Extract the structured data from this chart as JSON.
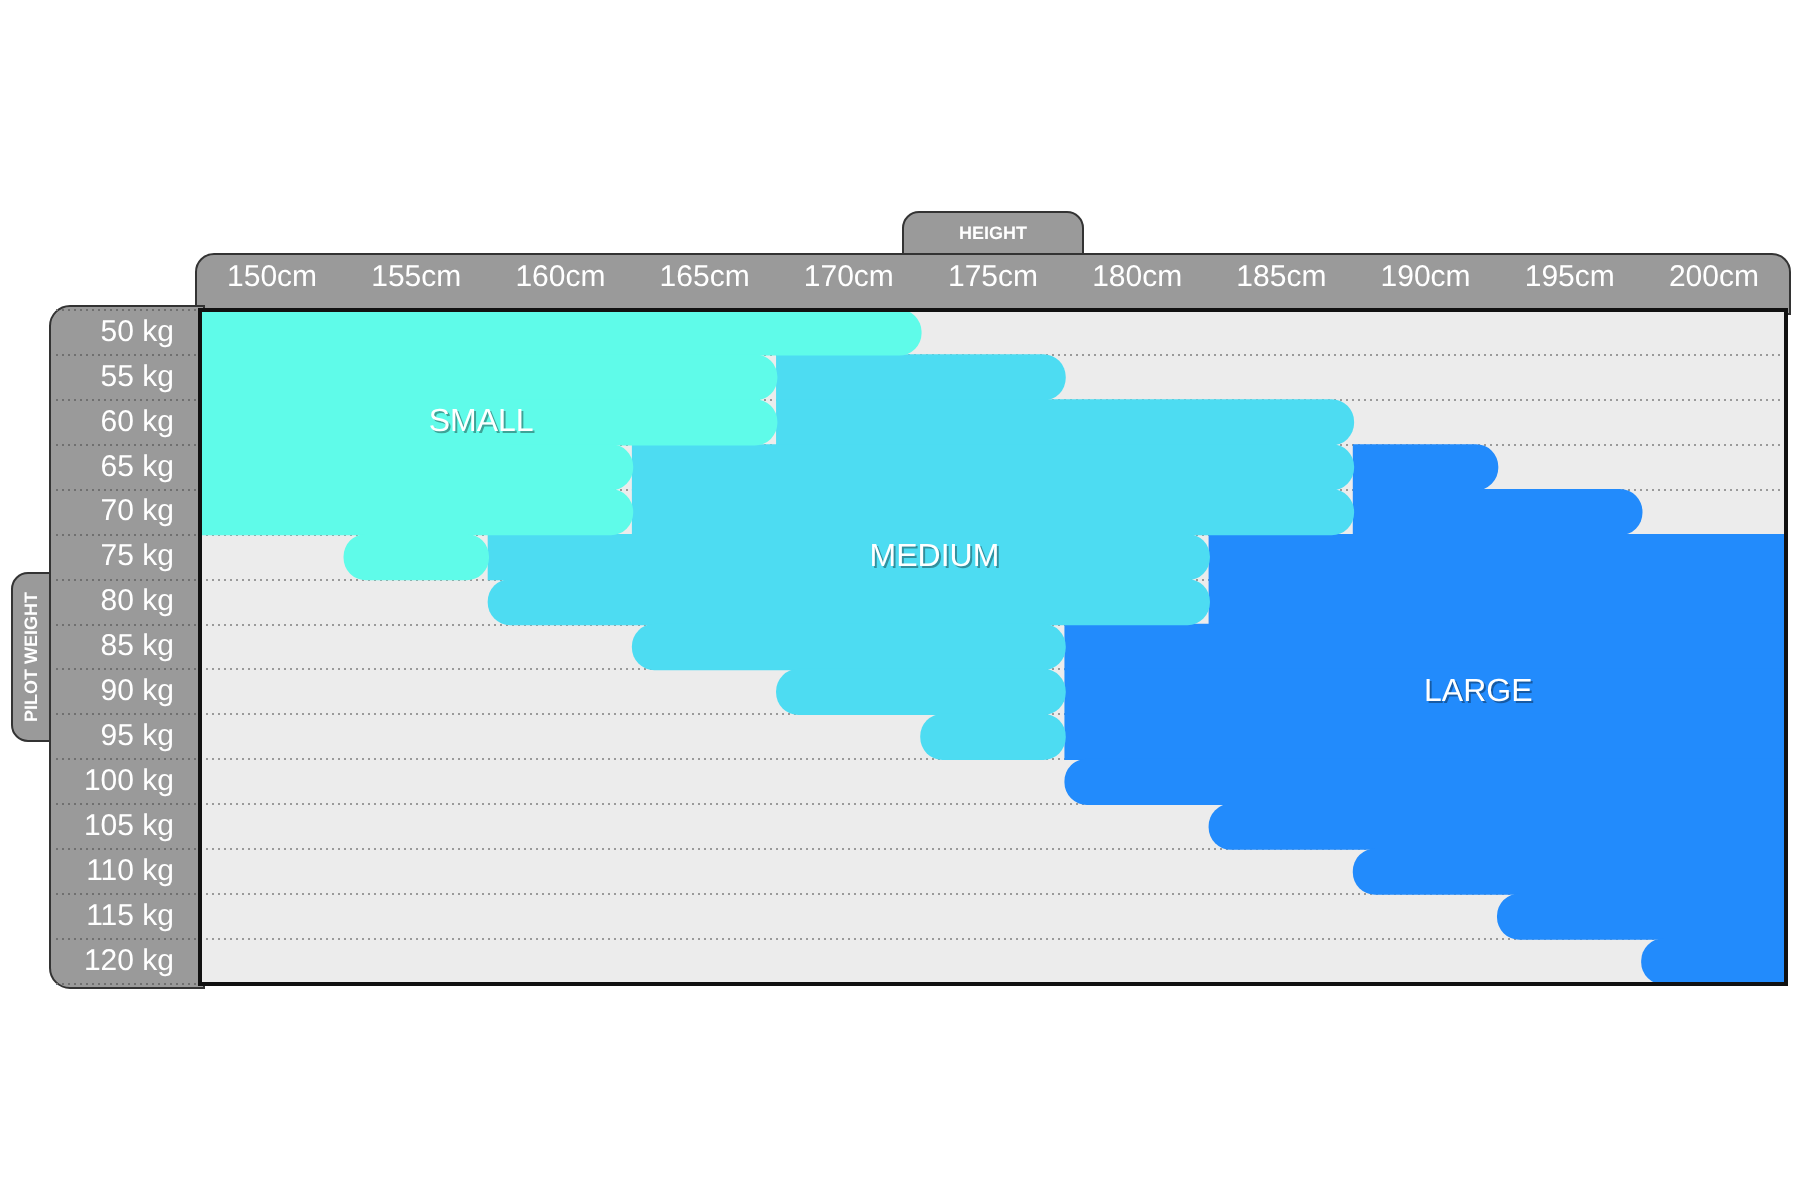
{
  "chart_data": {
    "type": "bar",
    "orientation": "horizontal",
    "xlabel": "HEIGHT",
    "ylabel": "PILOT WEIGHT",
    "categories": [
      "50 kg",
      "55 kg",
      "60 kg",
      "65 kg",
      "70 kg",
      "75 kg",
      "80 kg",
      "85 kg",
      "90 kg",
      "95 kg",
      "100 kg",
      "105 kg",
      "110 kg",
      "115 kg",
      "120 kg"
    ],
    "xlim": [
      147.5,
      202.5
    ],
    "xticks": [
      {
        "value": 150,
        "label": "150cm"
      },
      {
        "value": 155,
        "label": "155cm"
      },
      {
        "value": 160,
        "label": "160cm"
      },
      {
        "value": 165,
        "label": "165cm"
      },
      {
        "value": 170,
        "label": "170cm"
      },
      {
        "value": 175,
        "label": "175cm"
      },
      {
        "value": 180,
        "label": "180cm"
      },
      {
        "value": 185,
        "label": "185cm"
      },
      {
        "value": 190,
        "label": "190cm"
      },
      {
        "value": 195,
        "label": "195cm"
      },
      {
        "value": 200,
        "label": "200cm"
      }
    ],
    "series": [
      {
        "name": "SMALL",
        "color": "#5ffbe9",
        "base": [
          147.5,
          147.5,
          147.5,
          147.5,
          147.5,
          152.5,
          null,
          null,
          null,
          null,
          null,
          null,
          null,
          null,
          null
        ],
        "values": [
          25,
          20,
          20,
          15,
          15,
          5,
          null,
          null,
          null,
          null,
          null,
          null,
          null,
          null,
          null
        ]
      },
      {
        "name": "MEDIUM",
        "color": "#4ddcf2",
        "base": [
          null,
          167.5,
          167.5,
          162.5,
          162.5,
          157.5,
          157.5,
          162.5,
          167.5,
          172.5,
          null,
          null,
          null,
          null,
          null
        ],
        "values": [
          null,
          10,
          20,
          25,
          25,
          25,
          25,
          15,
          10,
          5,
          null,
          null,
          null,
          null,
          null
        ]
      },
      {
        "name": "LARGE",
        "color": "#228bfc",
        "base": [
          null,
          null,
          null,
          187.5,
          187.5,
          182.5,
          182.5,
          177.5,
          177.5,
          177.5,
          177.5,
          182.5,
          187.5,
          192.5,
          197.5
        ],
        "values": [
          null,
          null,
          null,
          5,
          10,
          20,
          20,
          25,
          25,
          25,
          25,
          20,
          15,
          10,
          5
        ]
      }
    ],
    "grid": "y",
    "legend": false
  }
}
